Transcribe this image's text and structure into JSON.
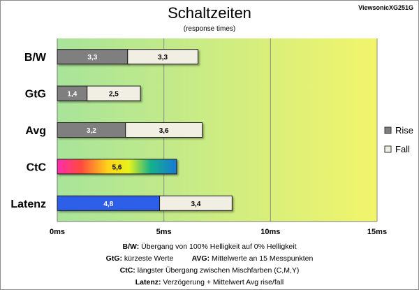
{
  "chart_data": {
    "type": "bar",
    "orientation": "horizontal",
    "stacked": true,
    "title": "Schaltzeiten",
    "subtitle": "(response times)",
    "model": "ViewsonicXG251G",
    "categories": [
      "B/W",
      "GtG",
      "Avg",
      "CtC",
      "Latenz"
    ],
    "series": [
      {
        "name": "Rise",
        "values": [
          3.3,
          1.4,
          3.2,
          null,
          null
        ]
      },
      {
        "name": "Fall",
        "values": [
          3.3,
          2.5,
          3.6,
          null,
          3.4
        ]
      }
    ],
    "special_bars": [
      {
        "category": "CtC",
        "value": 5.6,
        "label": "5,6",
        "style": "rainbow"
      },
      {
        "category": "Latenz",
        "value": 4.8,
        "label": "4,8",
        "style": "blue",
        "position": "start"
      }
    ],
    "xlim": [
      0,
      15
    ],
    "x_ticks": [
      0,
      5,
      10,
      15
    ],
    "x_tick_labels": [
      "0ms",
      "5ms",
      "10ms",
      "15ms"
    ],
    "grid": true,
    "legend_position": "right",
    "background_gradient": [
      "#a8e49a",
      "#f2f56a"
    ],
    "colors": {
      "rise": "#7f7f7f",
      "fall": "#f1efe3",
      "latenz": "#2f5fe8"
    }
  },
  "notes": [
    {
      "label": "B/W:",
      "text": "Übergang von 100% Helligkeit auf 0% Helligkeit"
    },
    {
      "label": "GtG:",
      "text": "kürzeste  Werte",
      "label2": "AVG:",
      "text2": "Mittelwerte  an 15 Messpunkten"
    },
    {
      "label": "CtC:",
      "text": "längster Übergang  zwischen Mischfarben  (C,M,Y)"
    },
    {
      "label": "Latenz:",
      "text": "Verzögerung  + Mittelwert  Avg rise/fall"
    }
  ]
}
